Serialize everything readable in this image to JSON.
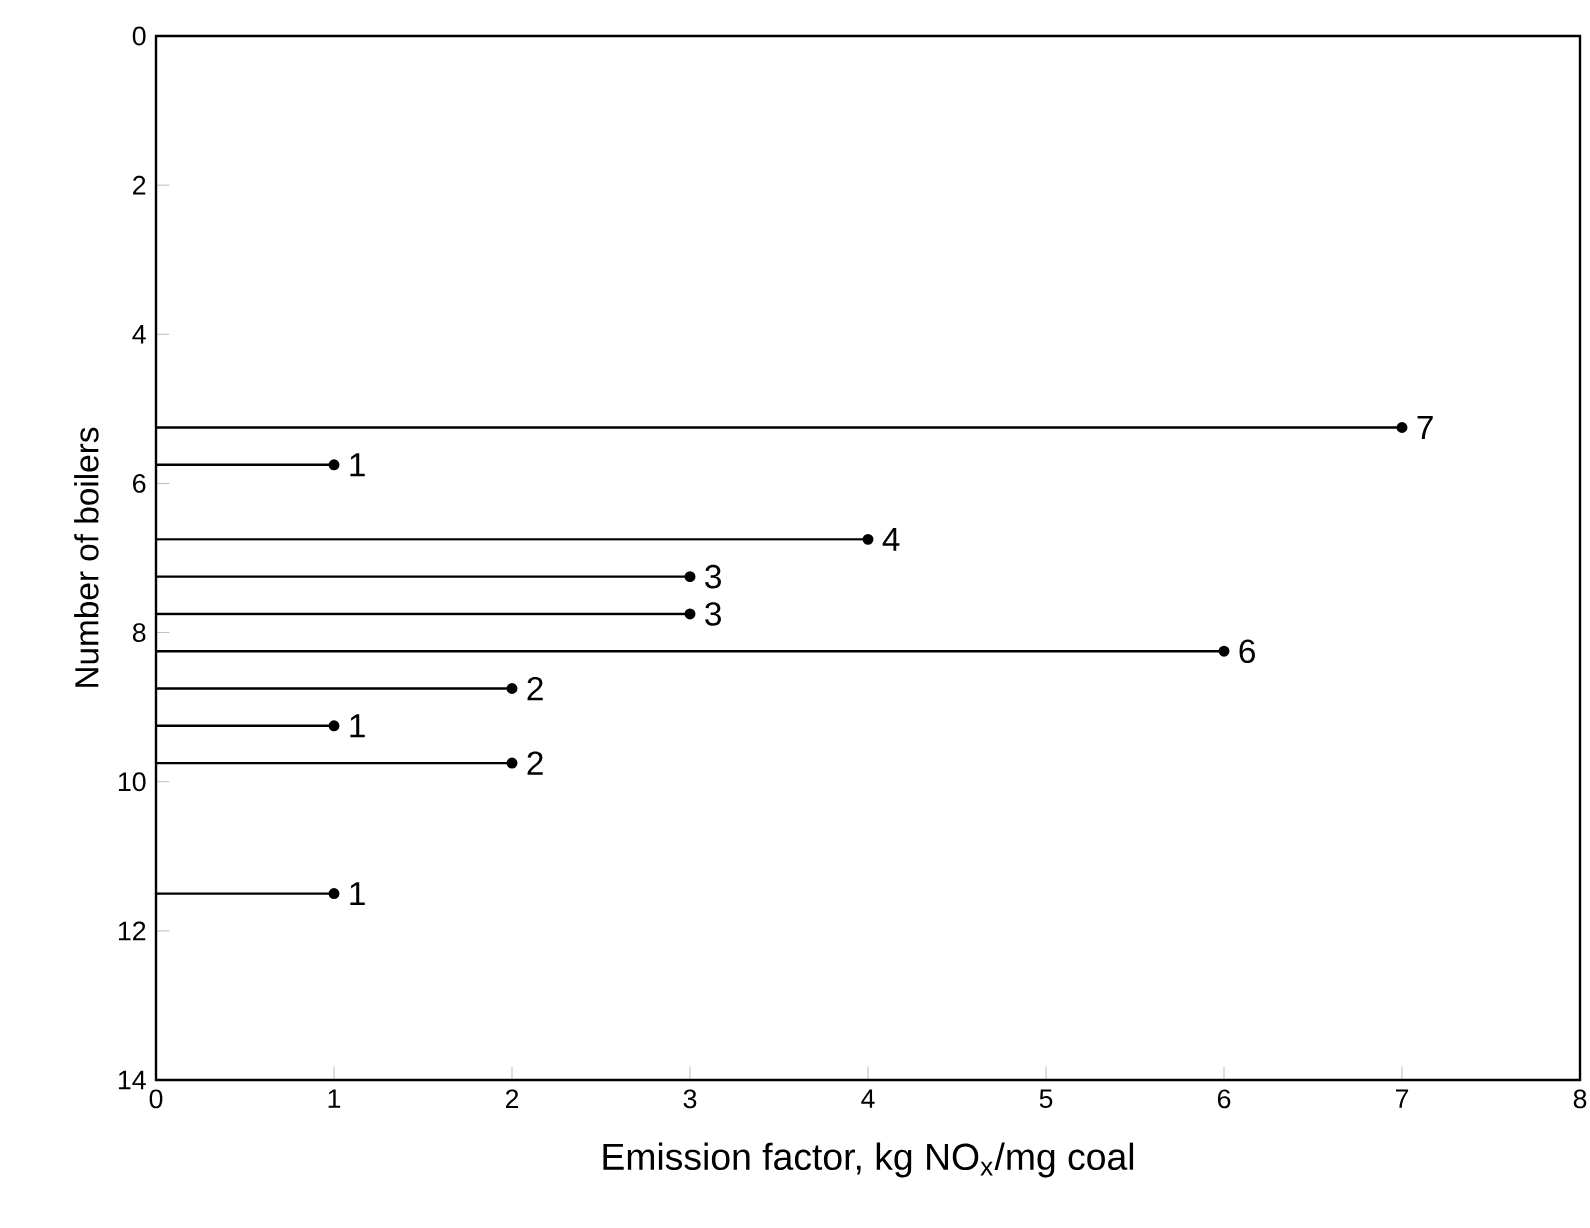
{
  "chart_data": {
    "type": "lollipop",
    "orientation": "horizontal",
    "xlabel": "Emission factor, kg NO$_{x}$/mg coal",
    "ylabel": "Number of boilers",
    "x": [
      5.25,
      5.75,
      6.75,
      7.25,
      7.75,
      8.25,
      8.75,
      9.25,
      9.75,
      11.5
    ],
    "values": [
      7,
      1,
      4,
      3,
      3,
      6,
      2,
      1,
      2,
      1
    ],
    "color": "#000000",
    "marker": "circle",
    "data_labels": true,
    "xlim": [
      0,
      8
    ],
    "xticks": [
      0,
      1,
      2,
      3,
      4,
      5,
      6,
      7,
      8
    ],
    "ylim": [
      14,
      0
    ],
    "yticks": [
      0,
      2,
      4,
      6,
      8,
      10,
      12,
      14
    ]
  }
}
